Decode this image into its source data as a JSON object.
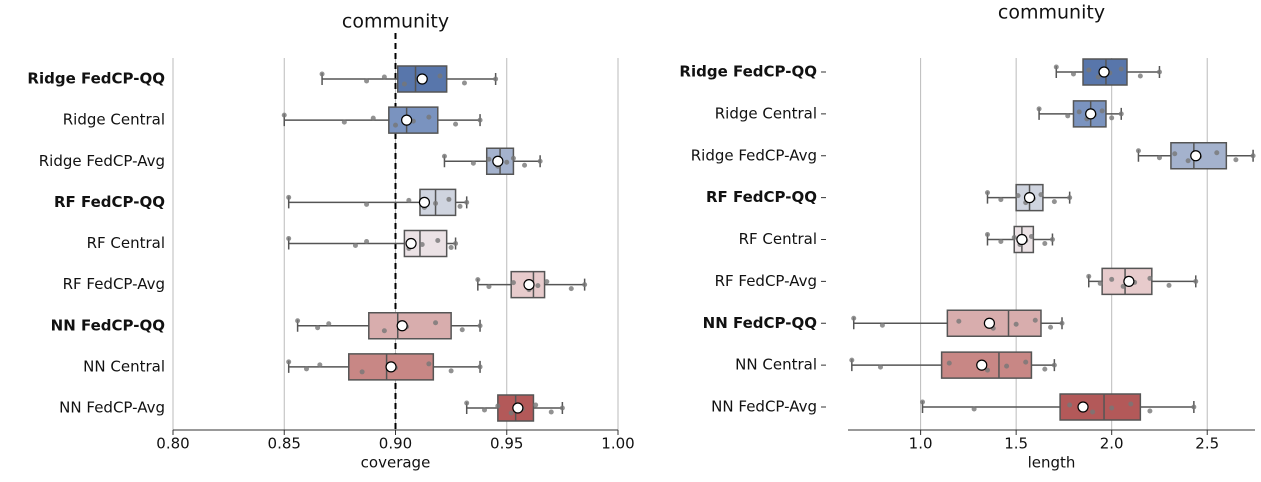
{
  "chart_data": [
    {
      "type": "box",
      "title": "community",
      "xlabel": "coverage",
      "xlim": [
        0.8,
        1.0
      ],
      "xticks": [
        {
          "value": 0.8,
          "label": "0.80"
        },
        0.85,
        {
          "value": 0.9,
          "label": "0.90"
        },
        0.95,
        {
          "value": 1.0,
          "label": "1.00"
        }
      ],
      "grid": true,
      "reference_line": 0.9,
      "series": [
        {
          "name": "Ridge FedCP-QQ",
          "bold": true,
          "color": "#5876ab",
          "stats": {
            "whislo": 0.867,
            "q1": 0.901,
            "med": 0.909,
            "q3": 0.923,
            "whishi": 0.945,
            "mean": 0.912
          },
          "points": [
            0.867,
            0.887,
            0.895,
            0.904,
            0.913,
            0.92,
            0.931,
            0.945
          ]
        },
        {
          "name": "Ridge Central",
          "bold": false,
          "color": "#7a93bf",
          "stats": {
            "whislo": 0.85,
            "q1": 0.897,
            "med": 0.905,
            "q3": 0.919,
            "whishi": 0.938,
            "mean": 0.905
          },
          "points": [
            0.85,
            0.877,
            0.89,
            0.9,
            0.908,
            0.915,
            0.927,
            0.938
          ]
        },
        {
          "name": "Ridge FedCP-Avg",
          "bold": false,
          "color": "#a4b2cd",
          "stats": {
            "whislo": 0.922,
            "q1": 0.941,
            "med": 0.947,
            "q3": 0.953,
            "whishi": 0.965,
            "mean": 0.946
          },
          "points": [
            0.922,
            0.935,
            0.942,
            0.946,
            0.95,
            0.953,
            0.958,
            0.965
          ]
        },
        {
          "name": "RF FedCP-QQ",
          "bold": true,
          "color": "#cfd4df",
          "stats": {
            "whislo": 0.852,
            "q1": 0.911,
            "med": 0.918,
            "q3": 0.927,
            "whishi": 0.932,
            "mean": 0.913
          },
          "points": [
            0.852,
            0.887,
            0.906,
            0.913,
            0.918,
            0.924,
            0.929,
            0.932
          ]
        },
        {
          "name": "RF Central",
          "bold": false,
          "color": "#ebe2e5",
          "stats": {
            "whislo": 0.852,
            "q1": 0.904,
            "med": 0.911,
            "q3": 0.923,
            "whishi": 0.927,
            "mean": 0.907
          },
          "points": [
            0.852,
            0.882,
            0.887,
            0.906,
            0.912,
            0.919,
            0.925,
            0.927
          ]
        },
        {
          "name": "RF FedCP-Avg",
          "bold": false,
          "color": "#e7cbcc",
          "stats": {
            "whislo": 0.937,
            "q1": 0.952,
            "med": 0.962,
            "q3": 0.967,
            "whishi": 0.985,
            "mean": 0.96
          },
          "points": [
            0.937,
            0.942,
            0.953,
            0.96,
            0.964,
            0.968,
            0.979,
            0.985
          ]
        },
        {
          "name": "NN FedCP-QQ",
          "bold": true,
          "color": "#d8adad",
          "stats": {
            "whislo": 0.856,
            "q1": 0.888,
            "med": 0.901,
            "q3": 0.925,
            "whishi": 0.938,
            "mean": 0.903
          },
          "points": [
            0.856,
            0.865,
            0.87,
            0.895,
            0.905,
            0.918,
            0.93,
            0.938
          ]
        },
        {
          "name": "NN Central",
          "bold": false,
          "color": "#c88785",
          "stats": {
            "whislo": 0.852,
            "q1": 0.879,
            "med": 0.896,
            "q3": 0.917,
            "whishi": 0.938,
            "mean": 0.898
          },
          "points": [
            0.852,
            0.86,
            0.866,
            0.885,
            0.9,
            0.915,
            0.925,
            0.938
          ]
        },
        {
          "name": "NN FedCP-Avg",
          "bold": false,
          "color": "#b35959",
          "stats": {
            "whislo": 0.932,
            "q1": 0.946,
            "med": 0.954,
            "q3": 0.962,
            "whishi": 0.975,
            "mean": 0.955
          },
          "points": [
            0.932,
            0.94,
            0.946,
            0.952,
            0.957,
            0.963,
            0.97,
            0.975
          ]
        }
      ]
    },
    {
      "type": "box",
      "title": "community",
      "xlabel": "length",
      "xlim": [
        0.62,
        2.75
      ],
      "xticks": [
        {
          "value": 1.0,
          "label": "1.0"
        },
        1.5,
        {
          "value": 2.0,
          "label": "2.0"
        },
        2.5
      ],
      "grid": true,
      "series": [
        {
          "name": "Ridge FedCP-QQ",
          "bold": true,
          "color": "#5876ab",
          "stats": {
            "whislo": 1.71,
            "q1": 1.85,
            "med": 1.97,
            "q3": 2.08,
            "whishi": 2.25,
            "mean": 1.96
          },
          "points": [
            1.71,
            1.8,
            1.88,
            1.93,
            1.99,
            2.05,
            2.15,
            2.25
          ]
        },
        {
          "name": "Ridge Central",
          "bold": false,
          "color": "#7a93bf",
          "stats": {
            "whislo": 1.62,
            "q1": 1.8,
            "med": 1.89,
            "q3": 1.97,
            "whishi": 2.05,
            "mean": 1.89
          },
          "points": [
            1.62,
            1.77,
            1.83,
            1.87,
            1.91,
            1.95,
            2.0,
            2.05
          ]
        },
        {
          "name": "Ridge FedCP-Avg",
          "bold": false,
          "color": "#a4b2cd",
          "stats": {
            "whislo": 2.14,
            "q1": 2.31,
            "med": 2.43,
            "q3": 2.6,
            "whishi": 2.74,
            "mean": 2.44
          },
          "points": [
            2.14,
            2.25,
            2.33,
            2.4,
            2.46,
            2.55,
            2.65,
            2.74
          ]
        },
        {
          "name": "RF FedCP-QQ",
          "bold": true,
          "color": "#cfd4df",
          "stats": {
            "whislo": 1.35,
            "q1": 1.5,
            "med": 1.57,
            "q3": 1.64,
            "whishi": 1.78,
            "mean": 1.57
          },
          "points": [
            1.35,
            1.42,
            1.51,
            1.55,
            1.59,
            1.63,
            1.7,
            1.78
          ]
        },
        {
          "name": "RF Central",
          "bold": false,
          "color": "#ebe2e5",
          "stats": {
            "whislo": 1.35,
            "q1": 1.49,
            "med": 1.53,
            "q3": 1.59,
            "whishi": 1.69,
            "mean": 1.53
          },
          "points": [
            1.35,
            1.42,
            1.49,
            1.52,
            1.55,
            1.58,
            1.65,
            1.69
          ]
        },
        {
          "name": "RF FedCP-Avg",
          "bold": false,
          "color": "#e7cbcc",
          "stats": {
            "whislo": 1.88,
            "q1": 1.95,
            "med": 2.07,
            "q3": 2.21,
            "whishi": 2.44,
            "mean": 2.09
          },
          "points": [
            1.88,
            1.94,
            2.0,
            2.06,
            2.12,
            2.2,
            2.3,
            2.44
          ]
        },
        {
          "name": "NN FedCP-QQ",
          "bold": true,
          "color": "#d8adad",
          "stats": {
            "whislo": 0.65,
            "q1": 1.14,
            "med": 1.46,
            "q3": 1.63,
            "whishi": 1.74,
            "mean": 1.36
          },
          "points": [
            0.65,
            0.8,
            1.2,
            1.38,
            1.5,
            1.6,
            1.68,
            1.74
          ]
        },
        {
          "name": "NN Central",
          "bold": false,
          "color": "#c88785",
          "stats": {
            "whislo": 0.64,
            "q1": 1.11,
            "med": 1.41,
            "q3": 1.58,
            "whishi": 1.7,
            "mean": 1.32
          },
          "points": [
            0.64,
            0.79,
            1.15,
            1.35,
            1.45,
            1.55,
            1.65,
            1.7
          ]
        },
        {
          "name": "NN FedCP-Avg",
          "bold": false,
          "color": "#b35959",
          "stats": {
            "whislo": 1.01,
            "q1": 1.73,
            "med": 1.96,
            "q3": 2.15,
            "whishi": 2.43,
            "mean": 1.85
          },
          "points": [
            1.01,
            1.28,
            1.78,
            1.9,
            2.0,
            2.1,
            2.2,
            2.43
          ]
        }
      ]
    }
  ]
}
